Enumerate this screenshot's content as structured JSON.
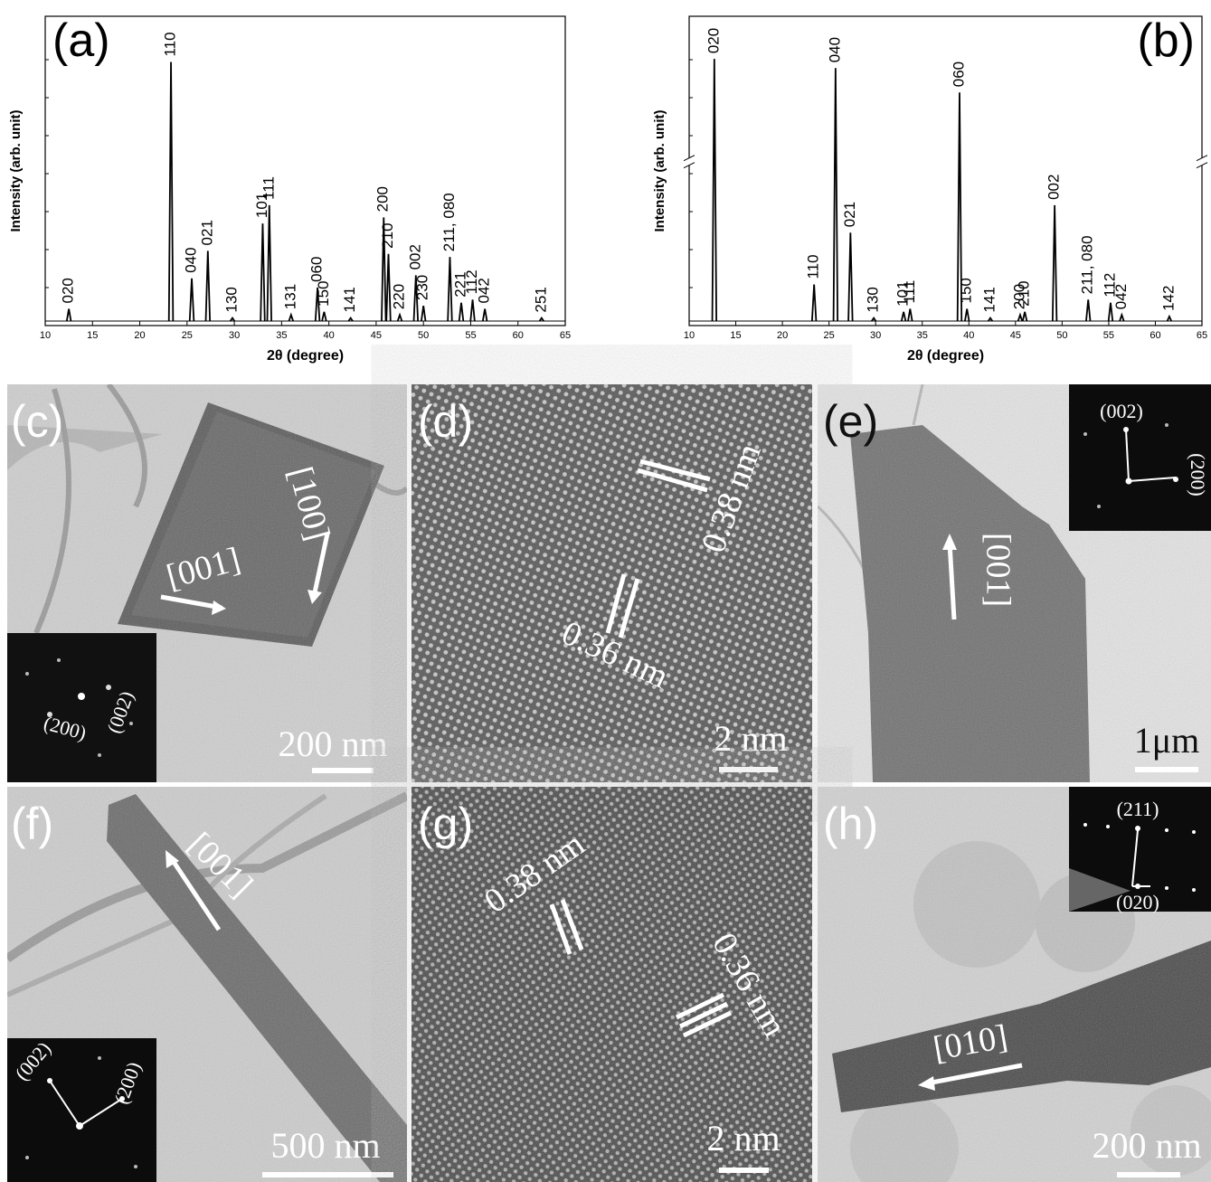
{
  "chart_data": [
    {
      "type": "stick",
      "panel_label": "(a)",
      "xlabel": "2θ (degree)",
      "ylabel": "Intensity (arb. unit)",
      "color": "#000000",
      "xlim": [
        10,
        65
      ],
      "xticks": [
        10,
        15,
        20,
        25,
        30,
        35,
        40,
        45,
        50,
        55,
        60,
        65
      ],
      "ylim": [
        -1.5,
        100
      ],
      "x": [
        12.5,
        23.3,
        25.5,
        27.2,
        29.8,
        33.0,
        33.7,
        36.0,
        38.8,
        39.5,
        42.3,
        45.8,
        46.3,
        47.5,
        49.2,
        50.0,
        52.8,
        54.0,
        55.2,
        56.5,
        62.5
      ],
      "values": [
        4,
        85,
        14,
        23,
        1,
        32,
        38,
        2,
        11,
        3,
        1,
        34,
        22,
        2,
        15,
        5,
        21,
        6,
        7,
        4,
        1
      ],
      "peak_labels": [
        "020",
        "110",
        "040",
        "021",
        "130",
        "101",
        "111",
        "131",
        "060",
        "150",
        "141",
        "200",
        "210",
        "220",
        "002",
        "230",
        "211, 080",
        "221",
        "112",
        "042",
        "251"
      ]
    },
    {
      "type": "stick",
      "panel_label": "(b)",
      "xlabel": "2θ (degree)",
      "ylabel": "Intensity (arb. unit)",
      "color": "#000000",
      "xlim": [
        10,
        65
      ],
      "xticks": [
        10,
        15,
        20,
        25,
        30,
        35,
        40,
        45,
        50,
        55,
        60,
        65
      ],
      "ylim": [
        -1.5,
        100
      ],
      "x": [
        12.7,
        23.4,
        25.7,
        27.3,
        29.8,
        33.0,
        33.7,
        39.0,
        39.8,
        42.3,
        45.5,
        46.0,
        49.2,
        52.8,
        55.2,
        56.4,
        61.5
      ],
      "values": [
        86,
        12,
        83,
        29,
        1,
        3,
        4,
        75,
        4,
        1,
        2,
        3,
        38,
        7,
        6,
        2,
        1.5
      ],
      "peak_labels": [
        "020",
        "110",
        "040",
        "021",
        "130",
        "101",
        "111",
        "060",
        "150",
        "141",
        "200",
        "210",
        "002",
        "211, 080",
        "112",
        "042",
        "142"
      ]
    }
  ],
  "images": {
    "panels": [
      {
        "label": "(c)",
        "annotations": [
          "[001]",
          "[100]"
        ],
        "inset": [
          "(200)",
          "(002)"
        ],
        "scale_bar": "200 nm"
      },
      {
        "label": "(d)",
        "annotations": [
          "0.38 nm",
          "0.36 nm"
        ],
        "scale_bar": "2 nm"
      },
      {
        "label": "(e)",
        "annotations": [
          "[001]"
        ],
        "inset": [
          "(002)",
          "(200)"
        ],
        "scale_bar": "1μm"
      },
      {
        "label": "(f)",
        "annotations": [
          "[001]"
        ],
        "inset": [
          "(002)",
          "(200)"
        ],
        "scale_bar": "500 nm"
      },
      {
        "label": "(g)",
        "annotations": [
          "0.38 nm",
          "0.36 nm"
        ],
        "scale_bar": "2 nm"
      },
      {
        "label": "(h)",
        "annotations": [
          "[010]"
        ],
        "inset": [
          "(211)",
          "(020)"
        ],
        "scale_bar": "200 nm"
      }
    ]
  }
}
